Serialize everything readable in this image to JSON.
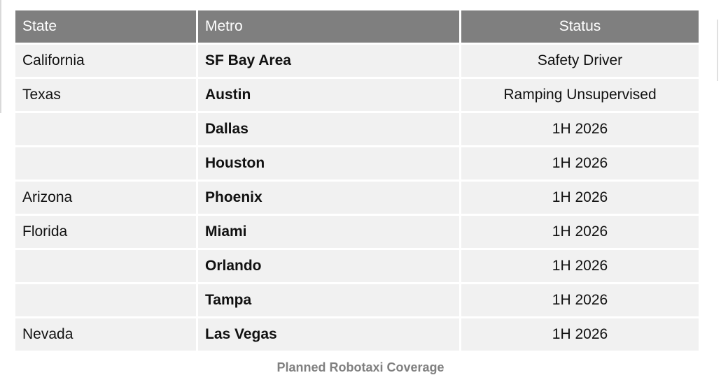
{
  "table": {
    "headers": {
      "state": "State",
      "metro": "Metro",
      "status": "Status"
    },
    "rows": [
      {
        "state": "California",
        "metro": "SF Bay Area",
        "status": "Safety Driver"
      },
      {
        "state": "Texas",
        "metro": "Austin",
        "status": "Ramping Unsupervised"
      },
      {
        "state": "",
        "metro": "Dallas",
        "status": "1H 2026"
      },
      {
        "state": "",
        "metro": "Houston",
        "status": "1H 2026"
      },
      {
        "state": "Arizona",
        "metro": "Phoenix",
        "status": "1H 2026"
      },
      {
        "state": "Florida",
        "metro": "Miami",
        "status": "1H 2026"
      },
      {
        "state": "",
        "metro": "Orlando",
        "status": "1H 2026"
      },
      {
        "state": "",
        "metro": "Tampa",
        "status": "1H 2026"
      },
      {
        "state": "Nevada",
        "metro": "Las Vegas",
        "status": "1H 2026"
      }
    ]
  },
  "caption": {
    "text": "Planned Robotaxi Coverage"
  },
  "colors": {
    "header_bg": "#7f7f7f",
    "header_text": "#ffffff",
    "row_bg": "#f1f1f1",
    "body_text": "#111111",
    "caption_text": "#808080",
    "page_bg": "#ffffff"
  }
}
